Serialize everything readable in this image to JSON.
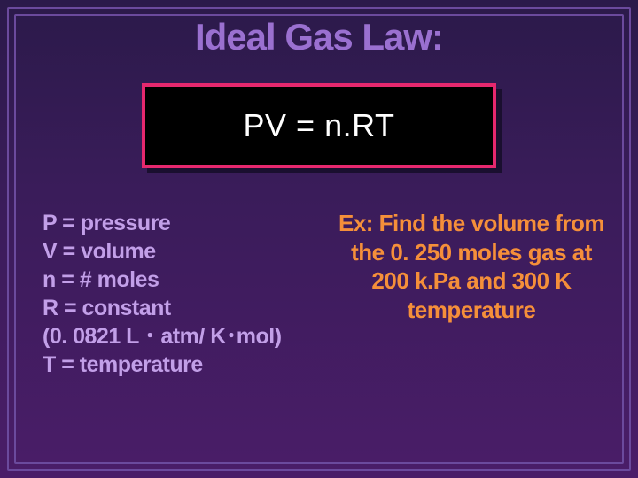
{
  "slide": {
    "background_gradient": [
      "#2b1a4a",
      "#3a1c5a",
      "#4a1d68"
    ],
    "frame_color": "#6b4a9d",
    "title": {
      "text": "Ideal Gas Law:",
      "color": "#9a70d0",
      "fontsize": 42,
      "weight": "bold"
    },
    "formula_box": {
      "text": "PV = n.RT",
      "text_color": "#ffffff",
      "text_fontsize": 36,
      "background": "#000000",
      "border_color": "#e6286e",
      "border_width": 4,
      "shadow_color": "#1a0f2f"
    },
    "definitions": {
      "color": "#c29fe8",
      "fontsize": 25,
      "weight": "bold",
      "lines": {
        "l0": "P = pressure",
        "l1": "V = volume",
        "l2": "n = # moles",
        "l3": "R = constant",
        "l4": "(0. 0821 L ･ atm/ K･mol)",
        "l5": "T = temperature"
      }
    },
    "example": {
      "color": "#f58f3a",
      "fontsize": 26,
      "weight": "bold",
      "text": "Ex: Find the volume from the 0. 250 moles gas at 200 k.Pa and 300 K temperature"
    }
  }
}
